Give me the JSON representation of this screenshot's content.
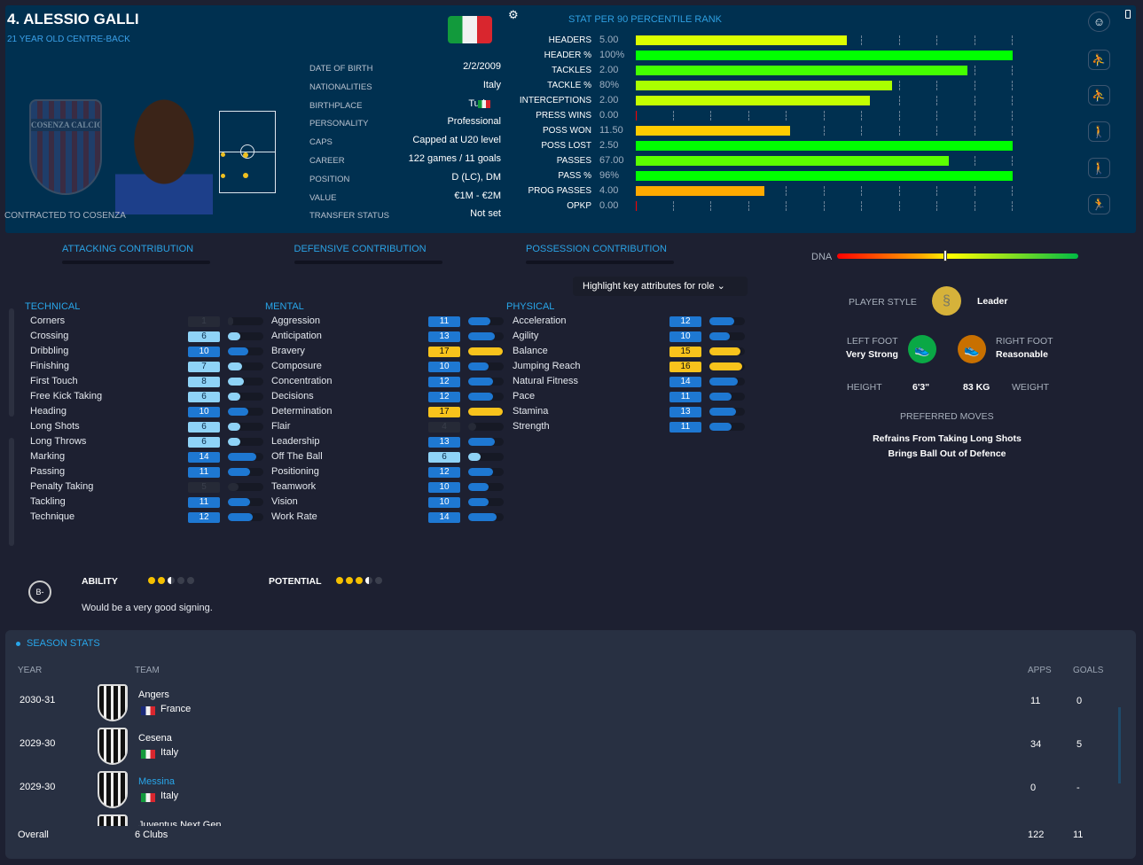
{
  "player": {
    "title": "4. ALESSIO GALLI",
    "subtitle": "21 YEAR OLD CENTRE-BACK",
    "contract": "CONTRACTED TO COSENZA",
    "club_badge_text": "COSENZA CALCIO"
  },
  "info": [
    {
      "label": "DATE OF BIRTH",
      "value": "2/2/2009"
    },
    {
      "label": "NATIONALITIES",
      "value": "Italy"
    },
    {
      "label": "BIRTHPLACE",
      "value": "Turin"
    },
    {
      "label": "PERSONALITY",
      "value": "Professional"
    },
    {
      "label": "CAPS",
      "value": "Capped at U20 level"
    },
    {
      "label": "CAREER",
      "value": "122  games /     11  goals"
    },
    {
      "label": "POSITION",
      "value": "D (LC), DM"
    },
    {
      "label": "VALUE",
      "value": "€1M - €2M"
    },
    {
      "label": "TRANSFER STATUS",
      "value": "Not set"
    }
  ],
  "chart_data": {
    "type": "bar",
    "orientation": "horizontal",
    "title": "STAT  PER 90 PERCENTILE RANK",
    "xlim": [
      0,
      100
    ],
    "categories": [
      "HEADERS",
      "HEADER %",
      "TACKLES",
      "TACKLE %",
      "INTERCEPTIONS",
      "PRESS WINS",
      "POSS WON",
      "POSS LOST",
      "PASSES",
      "PASS %",
      "PROG PASSES",
      "OPKP"
    ],
    "per90": [
      "5.00",
      "100%",
      "2.00",
      "80%",
      "2.00",
      "0.00",
      "11.50",
      "2.50",
      "67.00",
      "96%",
      "4.00",
      "0.00"
    ],
    "values": [
      56,
      100,
      88,
      68,
      62,
      0,
      41,
      100,
      83,
      100,
      34,
      0
    ],
    "colors": [
      "#dcff00",
      "#00ff00",
      "#44ff00",
      "#aaff00",
      "#c4ff00",
      "#ff0000",
      "#ffcc00",
      "#00ff00",
      "#5cff00",
      "#00ff00",
      "#ffaa00",
      "#ff0000"
    ]
  },
  "side_icons": [
    "profile-icon",
    "slide-tackle-icon",
    "slide-tackle-icon",
    "walking-player-icon",
    "walking-player-icon",
    "running-player-icon"
  ],
  "contributions": [
    "ATTACKING CONTRIBUTION",
    "DEFENSIVE CONTRIBUTION",
    "POSSESSION CONTRIBUTION"
  ],
  "highlight_dropdown": "Highlight key attributes for role",
  "attributes": {
    "technical": {
      "title": "TECHNICAL",
      "items": [
        [
          "Corners",
          1
        ],
        [
          "Crossing",
          6
        ],
        [
          "Dribbling",
          10
        ],
        [
          "Finishing",
          7
        ],
        [
          "First Touch",
          8
        ],
        [
          "Free Kick Taking",
          6
        ],
        [
          "Heading",
          10
        ],
        [
          "Long Shots",
          6
        ],
        [
          "Long Throws",
          6
        ],
        [
          "Marking",
          14
        ],
        [
          "Passing",
          11
        ],
        [
          "Penalty Taking",
          5
        ],
        [
          "Tackling",
          11
        ],
        [
          "Technique",
          12
        ]
      ]
    },
    "mental": {
      "title": "MENTAL",
      "items": [
        [
          "Aggression",
          11
        ],
        [
          "Anticipation",
          13
        ],
        [
          "Bravery",
          17
        ],
        [
          "Composure",
          10
        ],
        [
          "Concentration",
          12
        ],
        [
          "Decisions",
          12
        ],
        [
          "Determination",
          17
        ],
        [
          "Flair",
          4
        ],
        [
          "Leadership",
          13
        ],
        [
          "Off The Ball",
          6
        ],
        [
          "Positioning",
          12
        ],
        [
          "Teamwork",
          10
        ],
        [
          "Vision",
          10
        ],
        [
          "Work Rate",
          14
        ]
      ]
    },
    "physical": {
      "title": "PHYSICAL",
      "items": [
        [
          "Acceleration",
          12
        ],
        [
          "Agility",
          10
        ],
        [
          "Balance",
          15
        ],
        [
          "Jumping Reach",
          16
        ],
        [
          "Natural Fitness",
          14
        ],
        [
          "Pace",
          11
        ],
        [
          "Stamina",
          13
        ],
        [
          "Strength",
          11
        ]
      ]
    }
  },
  "colors": {
    "high": "#f8c31c",
    "mid": "#1e78d2",
    "low": "#8fd3f7",
    "dim": "#262a37",
    "accent": "#28a6ea"
  },
  "right": {
    "dna_label": "DNA",
    "dna_level": 45,
    "style_label": "PLAYER STYLE",
    "style_value": "Leader",
    "left_foot_label": "LEFT FOOT",
    "left_foot_value": "Very Strong",
    "right_foot_label": "RIGHT FOOT",
    "right_foot_value": "Reasonable",
    "height_label": "HEIGHT",
    "height_value": "6'3\"",
    "weight_value": "83 KG",
    "weight_label": "WEIGHT",
    "moves_label": "PREFERRED MOVES",
    "moves": [
      "Refrains From Taking Long Shots",
      "Brings Ball Out of Defence"
    ]
  },
  "rating": {
    "grade": "B-",
    "ability_label": "ABILITY",
    "ability_stars": 2.5,
    "potential_label": "POTENTIAL",
    "potential_stars": 3.5,
    "verdict": "Would be a very good signing."
  },
  "season": {
    "title": "SEASON STATS",
    "headers": {
      "year": "YEAR",
      "team": "TEAM",
      "apps": "APPS",
      "goals": "GOALS"
    },
    "rows": [
      {
        "year": "2030-31",
        "team": "Angers",
        "nation": "France",
        "apps": "11",
        "goals": "0"
      },
      {
        "year": "2029-30",
        "team": "Cesena",
        "nation": "Italy",
        "apps": "34",
        "goals": "5"
      },
      {
        "year": "2029-30",
        "team": "Messina",
        "nation": "Italy",
        "apps": "0",
        "goals": "-"
      },
      {
        "year": "",
        "team": "Juventus Next Gen",
        "nation": "",
        "apps": "",
        "goals": ""
      }
    ],
    "overall": {
      "label": "Overall",
      "team": "6 Clubs",
      "apps": "122",
      "goals": "11"
    }
  }
}
